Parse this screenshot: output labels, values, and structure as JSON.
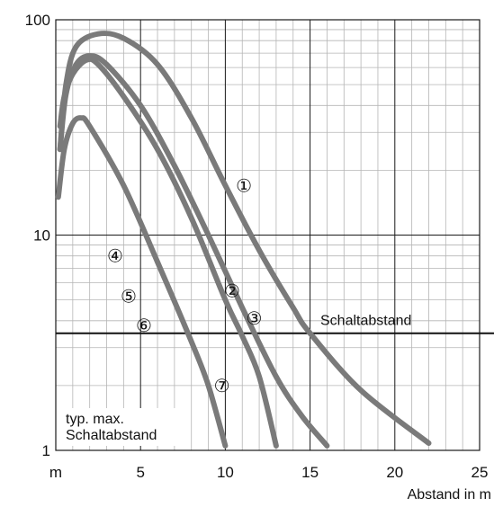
{
  "chart_data": {
    "type": "line",
    "xlabel": "Abstand in m",
    "x_unit_label": "m",
    "xlim": [
      0,
      25
    ],
    "x_ticks": [
      5,
      10,
      15,
      20,
      25
    ],
    "yscale": "log",
    "ylim": [
      1,
      100
    ],
    "y_ticks": [
      1,
      10,
      100
    ],
    "grid": true,
    "series": [
      {
        "marker": "①",
        "points": [
          [
            0.25,
            25
          ],
          [
            0.6,
            50
          ],
          [
            1.2,
            75
          ],
          [
            2.5,
            86
          ],
          [
            4,
            82
          ],
          [
            6,
            62
          ],
          [
            8,
            35
          ],
          [
            10,
            17
          ],
          [
            12,
            8.5
          ],
          [
            14,
            4.6
          ],
          [
            15,
            3.5
          ],
          [
            18,
            1.9
          ],
          [
            22,
            1.08
          ]
        ]
      },
      {
        "marker": "②",
        "points": [
          [
            0.25,
            25
          ],
          [
            0.6,
            45
          ],
          [
            1.2,
            62
          ],
          [
            2,
            68
          ],
          [
            3,
            62
          ],
          [
            5,
            40
          ],
          [
            7,
            21
          ],
          [
            9,
            10
          ],
          [
            11,
            4.6
          ],
          [
            13,
            2.2
          ],
          [
            14.5,
            1.45
          ],
          [
            16,
            1.05
          ]
        ]
      },
      {
        "marker": "③",
        "points": [
          [
            0.25,
            32
          ],
          [
            0.5,
            44
          ],
          [
            1,
            56
          ],
          [
            1.8,
            65
          ],
          [
            2.5,
            62
          ],
          [
            4,
            44
          ],
          [
            6,
            25
          ],
          [
            8,
            12
          ],
          [
            10,
            5
          ],
          [
            11,
            3.4
          ],
          [
            12,
            2.2
          ],
          [
            13,
            1.05
          ]
        ]
      },
      {
        "marker": "⑦",
        "points": [
          [
            0.15,
            15
          ],
          [
            0.5,
            25
          ],
          [
            1,
            33
          ],
          [
            1.5,
            35
          ],
          [
            2,
            32
          ],
          [
            4,
            17
          ],
          [
            6,
            7.5
          ],
          [
            8,
            3.2
          ],
          [
            9,
            2
          ],
          [
            10,
            1.05
          ]
        ]
      }
    ],
    "threshold": {
      "label": "Schaltabstand",
      "y": 3.5
    },
    "annotations": [
      {
        "text": "①",
        "x": 11.1,
        "y": 17
      },
      {
        "text": "②",
        "x": 10.4,
        "y": 5.5
      },
      {
        "text": "③",
        "x": 11.7,
        "y": 4.1
      },
      {
        "text": "④",
        "x": 3.5,
        "y": 8.0
      },
      {
        "text": "⑤",
        "x": 4.3,
        "y": 5.2
      },
      {
        "text": "⑥",
        "x": 5.2,
        "y": 3.8
      },
      {
        "text": "⑦",
        "x": 9.8,
        "y": 2.0
      }
    ],
    "note": "typ. max.\nSchaltabstand",
    "curve_color": "#7a7a7a"
  }
}
